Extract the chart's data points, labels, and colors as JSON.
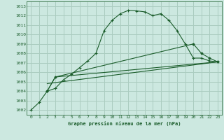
{
  "background_color": "#cce8e0",
  "grid_color": "#aaccc0",
  "line_color": "#1a5c2a",
  "title": "Graphe pression niveau de la mer (hPa)",
  "xlim": [
    -0.5,
    23.5
  ],
  "ylim": [
    1001.5,
    1013.5
  ],
  "yticks": [
    1002,
    1003,
    1004,
    1005,
    1006,
    1007,
    1008,
    1009,
    1010,
    1011,
    1012,
    1013
  ],
  "xticks": [
    0,
    1,
    2,
    3,
    4,
    5,
    6,
    7,
    8,
    9,
    10,
    11,
    12,
    13,
    14,
    15,
    16,
    17,
    18,
    19,
    20,
    21,
    22,
    23
  ],
  "line1_x": [
    0,
    1,
    2,
    3,
    4,
    5,
    6,
    7,
    8,
    9,
    10,
    11,
    12,
    13,
    14,
    15,
    16,
    17,
    18,
    19,
    20,
    21,
    22,
    23
  ],
  "line1_y": [
    1002.0,
    1002.8,
    1004.0,
    1004.3,
    1005.2,
    1005.8,
    1006.5,
    1007.2,
    1008.0,
    1010.4,
    1011.5,
    1012.2,
    1012.55,
    1012.5,
    1012.4,
    1012.0,
    1012.2,
    1011.5,
    1010.4,
    1009.0,
    1007.5,
    1007.5,
    1007.2,
    1007.1
  ],
  "line2_x": [
    2,
    3,
    20,
    21,
    22,
    23
  ],
  "line2_y": [
    1004.0,
    1005.5,
    1009.0,
    1008.0,
    1007.5,
    1007.1
  ],
  "line3_x": [
    2,
    3,
    23
  ],
  "line3_y": [
    1004.0,
    1005.5,
    1007.1
  ],
  "line4_x": [
    2,
    23
  ],
  "line4_y": [
    1004.8,
    1007.1
  ]
}
